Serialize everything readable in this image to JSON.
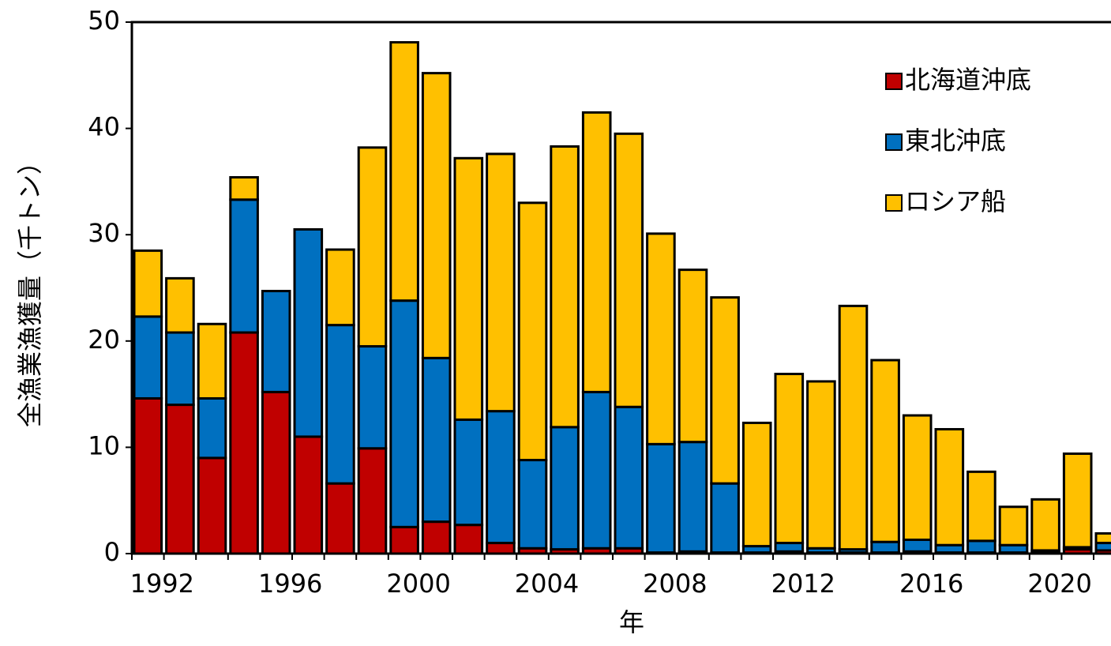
{
  "chart_data": {
    "type": "stacked_bar",
    "x_label": "年",
    "y_label": "全漁業漁獲量（千トン）",
    "categories": [
      "1992",
      null,
      null,
      null,
      "1996",
      null,
      null,
      null,
      "2000",
      null,
      null,
      null,
      "2004",
      null,
      null,
      null,
      "2008",
      null,
      null,
      null,
      "2012",
      null,
      null,
      null,
      "2016",
      null,
      null,
      null,
      "2020",
      null,
      null
    ],
    "series": [
      {
        "name": "北海道沖底",
        "color": "#c00000",
        "values": [
          14.6,
          14.0,
          9.0,
          20.8,
          15.2,
          11.0,
          6.6,
          9.9,
          2.5,
          3.0,
          2.7,
          1.0,
          0.5,
          0.4,
          0.5,
          0.5,
          0.1,
          0.2,
          0.1,
          0.1,
          0.2,
          0.1,
          0.1,
          0.1,
          0.2,
          0.1,
          0.1,
          0.1,
          0.1,
          0.4,
          0.3
        ]
      },
      {
        "name": "東北沖底",
        "color": "#0070c0",
        "values": [
          7.7,
          6.8,
          5.6,
          12.5,
          9.5,
          19.5,
          14.9,
          9.6,
          21.3,
          15.4,
          9.9,
          12.4,
          8.3,
          11.5,
          14.7,
          13.3,
          10.2,
          10.3,
          6.5,
          0.6,
          0.8,
          0.4,
          0.3,
          1.0,
          1.1,
          0.7,
          1.1,
          0.7,
          0.2,
          0.2,
          0.7
        ]
      },
      {
        "name": "ロシア船",
        "color": "#ffc000",
        "values": [
          6.2,
          5.1,
          7.0,
          2.1,
          0,
          0,
          7.1,
          18.7,
          24.3,
          26.8,
          24.6,
          24.2,
          24.2,
          26.4,
          26.3,
          25.7,
          19.8,
          16.2,
          17.5,
          11.6,
          15.9,
          15.7,
          22.9,
          17.1,
          11.7,
          10.9,
          6.5,
          3.6,
          4.8,
          8.8,
          0.9
        ]
      }
    ],
    "ylim": [
      0,
      50
    ],
    "yticks": [
      0,
      10,
      20,
      30,
      40,
      50
    ],
    "legend": "upper right"
  }
}
